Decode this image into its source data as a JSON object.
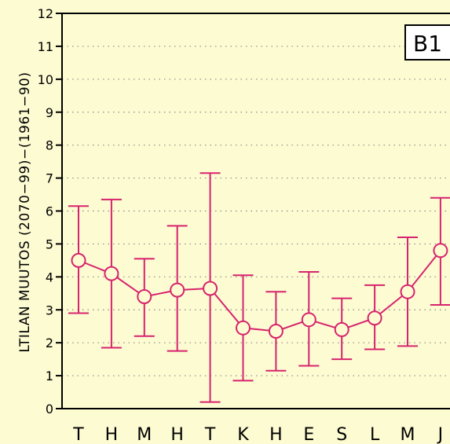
{
  "chart_data": {
    "type": "line",
    "badge": "B1",
    "ylabel": "LTILAN MUUTOS (2070−99)−(1961−90)",
    "ylim": [
      0,
      12
    ],
    "yticks": [
      0,
      1,
      2,
      3,
      4,
      5,
      6,
      7,
      8,
      9,
      10,
      11,
      12
    ],
    "grid": true,
    "categories": [
      "T",
      "H",
      "M",
      "H",
      "T",
      "K",
      "H",
      "E",
      "S",
      "L",
      "M",
      "J"
    ],
    "series": [
      {
        "values": [
          4.5,
          4.1,
          3.4,
          3.6,
          3.65,
          2.45,
          2.35,
          2.7,
          2.4,
          2.75,
          3.55,
          4.8
        ],
        "lower": [
          2.9,
          1.85,
          2.2,
          1.75,
          0.2,
          0.85,
          1.15,
          1.3,
          1.5,
          1.8,
          1.9,
          3.15
        ],
        "upper": [
          6.15,
          6.35,
          4.55,
          5.55,
          7.15,
          4.05,
          3.55,
          4.15,
          3.35,
          3.75,
          5.2,
          6.4
        ]
      }
    ],
    "colors": {
      "series": "#d6246e",
      "background": "#fdfbd2",
      "grid": "#8a8a8a"
    }
  }
}
